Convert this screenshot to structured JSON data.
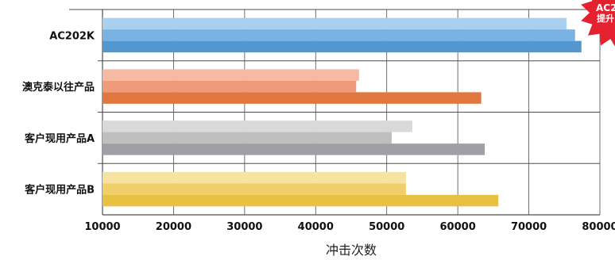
{
  "chart_data": {
    "type": "bar",
    "orientation": "horizontal",
    "categories": [
      "AC202K",
      "澳克泰以往产品",
      "客户现用产品A",
      "客户现用产品B"
    ],
    "series": [
      {
        "values": [
          75300,
          46100,
          53600,
          52700
        ]
      },
      {
        "values": [
          76500,
          45700,
          50700,
          52700
        ]
      },
      {
        "values": [
          77400,
          63300,
          63800,
          65700
        ]
      }
    ],
    "bar_colors": [
      [
        "#a8d1ef",
        "#78b3e3",
        "#5297cf"
      ],
      [
        "#f6b9a2",
        "#ef9a7a",
        "#e1773f"
      ],
      [
        "#d9d9d9",
        "#bfbfbf",
        "#9f9fa5"
      ],
      [
        "#f6e3a0",
        "#f0cf6a",
        "#e8c142"
      ]
    ],
    "xaxis": {
      "ticks": [
        10000,
        20000,
        30000,
        40000,
        50000,
        60000,
        70000,
        80000
      ],
      "label": "冲击次数"
    },
    "xlim": [
      10000,
      80000
    ],
    "grid": true,
    "badge": {
      "text_line1": "AC2",
      "text_line2": "提升",
      "color": "#e5202f"
    }
  }
}
